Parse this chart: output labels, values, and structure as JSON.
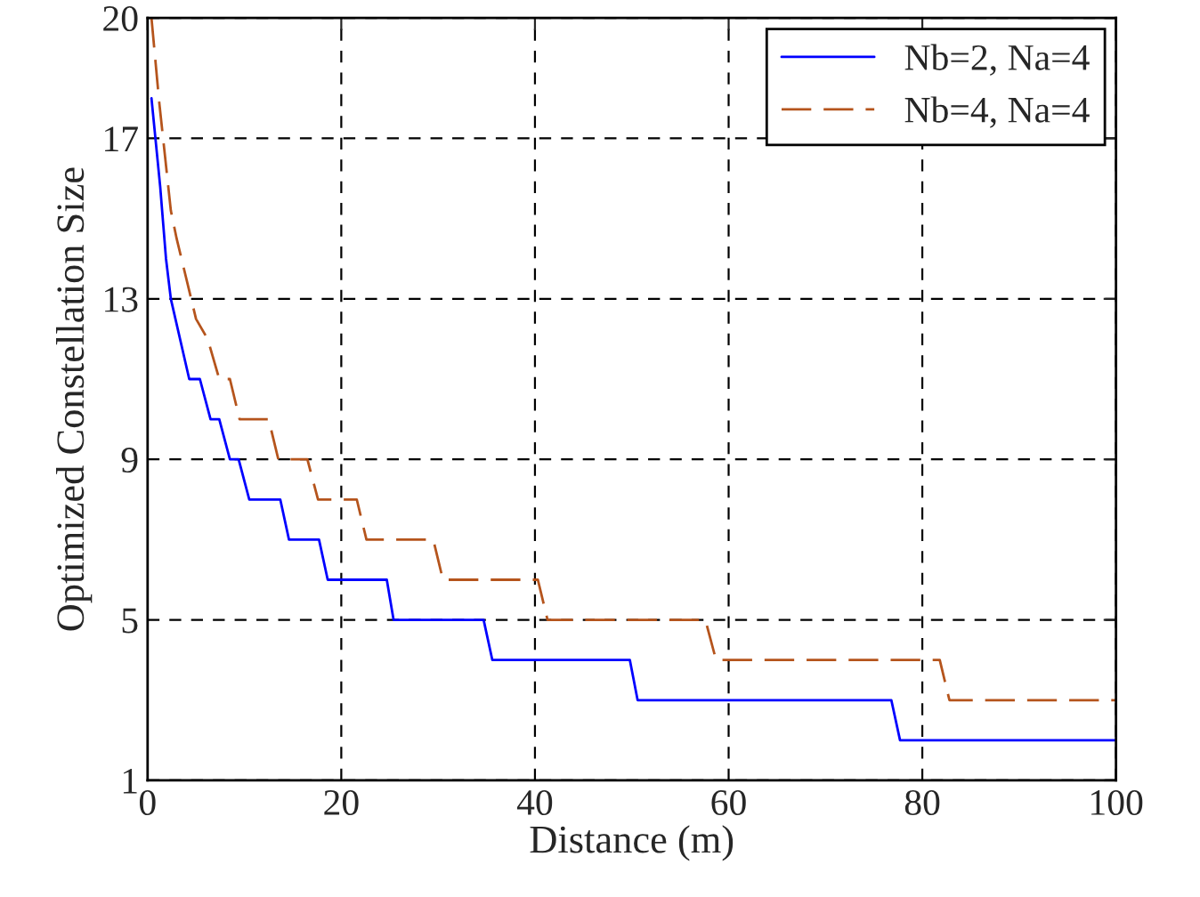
{
  "chart_data": {
    "type": "line",
    "xlabel": "Distance (m)",
    "ylabel": "Optimized Constellation Size",
    "xlim": [
      0,
      100
    ],
    "ylim": [
      1,
      20
    ],
    "xticks": [
      0,
      20,
      40,
      60,
      80,
      100
    ],
    "yticks": [
      1,
      5,
      9,
      13,
      17,
      20
    ],
    "grid": true,
    "legend": "top right",
    "series": [
      {
        "name": "Nb=2, Na=4",
        "color": "#0000ff",
        "line_style": "solid",
        "x": [
          0.4,
          1.3,
          1.9,
          2.4,
          4.3,
          5.4,
          6.5,
          7.4,
          8.5,
          9.4,
          10.5,
          13.7,
          14.6,
          17.7,
          18.6,
          24.7,
          25.4,
          34.7,
          35.6,
          49.8,
          50.6,
          76.8,
          77.7,
          100
        ],
        "values": [
          18,
          15.8,
          14,
          13,
          11,
          11,
          10,
          10,
          9,
          9,
          8,
          8,
          7,
          7,
          6,
          6,
          5,
          5,
          4,
          4,
          3,
          3,
          2,
          2
        ]
      },
      {
        "name": "Nb=4, Na=4",
        "color": "#b5541c",
        "line_style": "dashed",
        "x": [
          0.4,
          1.2,
          2.4,
          3,
          5,
          6.2,
          7.4,
          8.5,
          9.5,
          12.5,
          13.5,
          16.5,
          17.6,
          21.6,
          22.6,
          29.5,
          30.5,
          40.3,
          41.3,
          57.6,
          58.7,
          81.8,
          82.8,
          100
        ],
        "values": [
          20,
          17.9,
          15.2,
          14.5,
          12.5,
          12,
          11,
          11,
          10,
          10,
          9,
          9,
          8,
          8,
          7,
          7,
          6,
          6,
          5,
          5,
          4,
          4,
          3,
          3
        ]
      }
    ]
  }
}
